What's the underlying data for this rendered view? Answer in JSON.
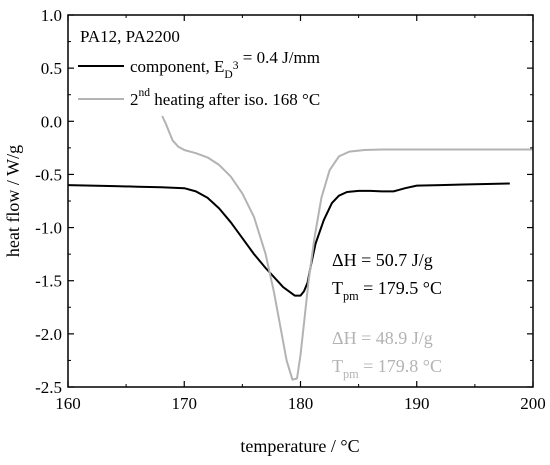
{
  "chart_data": {
    "type": "line",
    "xlabel": "temperature / °C",
    "ylabel": "heat flow / W/g",
    "xlim": [
      160,
      200
    ],
    "ylim": [
      -2.5,
      1.0
    ],
    "x_ticks": [
      160,
      170,
      180,
      190,
      200
    ],
    "x_tick_labels": [
      "160",
      "170",
      "180",
      "190",
      "200"
    ],
    "y_ticks": [
      -2.5,
      -2.0,
      -1.5,
      -1.0,
      -0.5,
      0.0,
      0.5,
      1.0
    ],
    "y_tick_labels": [
      "-2.5",
      "-2.0",
      "-1.5",
      "-1.0",
      "-0.5",
      "0.0",
      "0.5",
      "1.0"
    ],
    "grid": false,
    "legend_position": "top-left",
    "legend_header": "PA12, PA2200",
    "series": [
      {
        "name": "component, E_D = 0.4 J/mm³",
        "legend": {
          "main": "component, E",
          "sub": "D",
          "rest": " = 0.4 J/mm",
          "sup": "3"
        },
        "color": "#000000",
        "x": [
          160,
          162,
          164,
          166,
          168,
          170,
          171,
          172,
          173,
          174,
          175,
          176,
          177,
          178,
          178.5,
          179,
          179.5,
          180,
          180.3,
          180.6,
          180.9,
          181.3,
          182,
          182.7,
          183.3,
          184,
          185,
          186,
          187,
          188,
          188.5,
          189,
          190,
          192,
          194,
          196,
          198
        ],
        "y": [
          -0.6,
          -0.605,
          -0.61,
          -0.615,
          -0.62,
          -0.63,
          -0.66,
          -0.72,
          -0.82,
          -0.95,
          -1.1,
          -1.25,
          -1.38,
          -1.5,
          -1.56,
          -1.6,
          -1.64,
          -1.64,
          -1.6,
          -1.52,
          -1.35,
          -1.15,
          -0.93,
          -0.77,
          -0.7,
          -0.665,
          -0.655,
          -0.655,
          -0.66,
          -0.66,
          -0.645,
          -0.63,
          -0.605,
          -0.6,
          -0.595,
          -0.59,
          -0.585
        ]
      },
      {
        "name": "2nd heating after iso. 168 °C",
        "legend": {
          "main": "2",
          "sup": "nd",
          "rest": " heating after iso. 168 °C"
        },
        "color": "#b3b3b3",
        "x": [
          168.1,
          168.4,
          168.7,
          169,
          169.5,
          170,
          171,
          172,
          173,
          174,
          175,
          176,
          177,
          177.7,
          178.3,
          178.8,
          179.3,
          179.7,
          180,
          180.3,
          180.7,
          181.2,
          181.8,
          182.5,
          183.3,
          184.2,
          185.5,
          187,
          190,
          195,
          200
        ],
        "y": [
          0.05,
          -0.02,
          -0.1,
          -0.18,
          -0.24,
          -0.27,
          -0.3,
          -0.34,
          -0.41,
          -0.52,
          -0.68,
          -0.9,
          -1.25,
          -1.6,
          -1.95,
          -2.25,
          -2.43,
          -2.42,
          -2.2,
          -1.9,
          -1.5,
          -1.1,
          -0.72,
          -0.46,
          -0.33,
          -0.285,
          -0.27,
          -0.265,
          -0.265,
          -0.265,
          -0.265
        ]
      }
    ],
    "annotations": [
      {
        "series": 0,
        "lines": [
          {
            "main": "ΔH = 50.7 J/g"
          },
          {
            "main": "T",
            "sub": "pm",
            "rest": " = 179.5 °C"
          }
        ]
      },
      {
        "series": 1,
        "lines": [
          {
            "main": "ΔH = 48.9 J/g"
          },
          {
            "main": "T",
            "sub": "pm",
            "rest": " = 179.8 °C"
          }
        ]
      }
    ]
  }
}
